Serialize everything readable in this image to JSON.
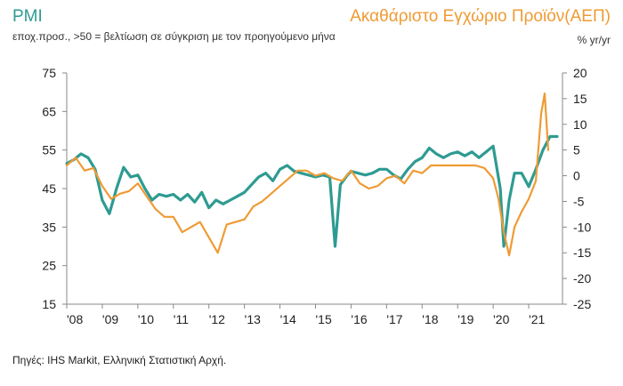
{
  "header": {
    "title_left": "PMI",
    "subtitle": "εποχ.προσ., >50 = βελτίωση σε σύγκριση με τον προηγούμενο μήνα",
    "title_right": "Ακαθάριστο Εγχώριο Προϊόν(ΑΕΠ)",
    "unit_right": "% yr/yr"
  },
  "source": "Πηγές: IHS Markit, Ελληνική Στατιστική Αρχή.",
  "colors": {
    "pmi": "#2e9b92",
    "gdp": "#ef9b34",
    "axis": "#888888"
  },
  "chart_data": {
    "type": "line",
    "title": "",
    "x_tick_labels": [
      "'08",
      "'09",
      "'10",
      "'11",
      "'12",
      "'13",
      "'14",
      "'15",
      "'16",
      "'17",
      "'18",
      "'19",
      "'20",
      "'21"
    ],
    "left_axis": {
      "ticks": [
        75,
        65,
        55,
        45,
        35,
        25,
        15
      ],
      "ylim": [
        15,
        75
      ]
    },
    "right_axis": {
      "ticks": [
        20,
        15,
        10,
        5,
        0,
        -5,
        -10,
        -15,
        -20,
        -25
      ],
      "ylim": [
        -25,
        20
      ]
    },
    "grid": false,
    "series": [
      {
        "name": "PMI",
        "axis": "left",
        "x": [
          2008.0,
          2008.2,
          2008.4,
          2008.6,
          2008.8,
          2009.0,
          2009.2,
          2009.4,
          2009.6,
          2009.8,
          2010.0,
          2010.2,
          2010.4,
          2010.6,
          2010.8,
          2011.0,
          2011.2,
          2011.4,
          2011.6,
          2011.8,
          2012.0,
          2012.2,
          2012.4,
          2012.6,
          2012.8,
          2013.0,
          2013.2,
          2013.4,
          2013.6,
          2013.8,
          2014.0,
          2014.2,
          2014.4,
          2014.6,
          2014.8,
          2015.0,
          2015.2,
          2015.4,
          2015.55,
          2015.7,
          2015.9,
          2016.0,
          2016.2,
          2016.4,
          2016.6,
          2016.8,
          2017.0,
          2017.2,
          2017.4,
          2017.6,
          2017.8,
          2018.0,
          2018.2,
          2018.4,
          2018.6,
          2018.8,
          2019.0,
          2019.2,
          2019.4,
          2019.6,
          2019.8,
          2020.0,
          2020.2,
          2020.3,
          2020.45,
          2020.6,
          2020.8,
          2021.0,
          2021.2,
          2021.4,
          2021.6,
          2021.8
        ],
        "y": [
          51.5,
          52.5,
          54,
          53,
          50,
          42,
          38.5,
          45,
          50.5,
          48,
          48.5,
          45,
          42,
          43.5,
          43,
          43.5,
          42,
          43.5,
          41.5,
          44,
          40,
          42,
          41,
          42,
          43,
          44,
          46,
          48,
          49,
          47,
          50,
          51,
          49.5,
          49,
          48.5,
          48,
          48.5,
          48,
          30,
          46,
          48.5,
          49.5,
          49,
          48.5,
          49,
          50,
          50,
          48.5,
          47.5,
          50,
          52,
          53,
          55.5,
          54,
          53,
          54,
          54.5,
          53.5,
          54.5,
          53,
          54.5,
          56,
          45,
          30,
          42,
          49,
          49,
          45.5,
          50,
          55,
          58.5,
          58.5
        ]
      },
      {
        "name": "ΑΕΠ",
        "axis": "right",
        "x": [
          2008.0,
          2008.25,
          2008.5,
          2008.75,
          2009.0,
          2009.25,
          2009.5,
          2009.75,
          2010.0,
          2010.25,
          2010.5,
          2010.75,
          2011.0,
          2011.25,
          2011.5,
          2011.75,
          2012.0,
          2012.25,
          2012.5,
          2012.75,
          2013.0,
          2013.25,
          2013.5,
          2013.75,
          2014.0,
          2014.25,
          2014.5,
          2014.75,
          2015.0,
          2015.25,
          2015.5,
          2015.75,
          2016.0,
          2016.25,
          2016.5,
          2016.75,
          2017.0,
          2017.25,
          2017.5,
          2017.75,
          2018.0,
          2018.25,
          2018.5,
          2018.75,
          2019.0,
          2019.25,
          2019.5,
          2019.75,
          2020.0,
          2020.15,
          2020.3,
          2020.45,
          2020.6,
          2020.8,
          2021.0,
          2021.2,
          2021.35,
          2021.45,
          2021.55
        ],
        "y": [
          2,
          3.5,
          1,
          1.5,
          -2,
          -4.5,
          -3.5,
          -3,
          -1.5,
          -4,
          -6.5,
          -8,
          -8,
          -11,
          -10,
          -9,
          -12,
          -15,
          -9.5,
          -9,
          -8.5,
          -6,
          -5,
          -3.5,
          -2,
          -0.5,
          1,
          1,
          0,
          0.5,
          -0.5,
          -1,
          1,
          -1.5,
          -2.5,
          -2,
          -0.5,
          0,
          -1.5,
          1,
          0.5,
          2,
          2,
          2,
          2,
          2,
          2,
          1.5,
          -0.5,
          -4.5,
          -11,
          -15.5,
          -10,
          -7,
          -4.5,
          -1,
          12,
          16,
          5
        ]
      }
    ]
  }
}
